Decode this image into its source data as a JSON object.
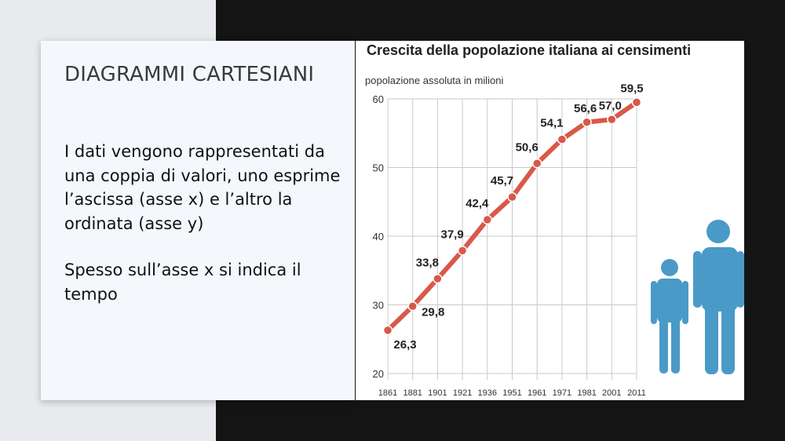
{
  "slide": {
    "title": "DIAGRAMMI CARTESIANI",
    "paragraph1": "I dati vengono rappresentati da una coppia di valori, uno esprime l’ascissa (asse x) e l’altro la ordinata (asse y)",
    "paragraph2": "Spesso sull’asse x si indica il tempo"
  },
  "colors": {
    "line": "#d9584a",
    "figure": "#4a9ac8",
    "grid": "#c9c9c9"
  },
  "chart_data": {
    "type": "line",
    "title": "Crescita della popolazione italiana ai censimenti",
    "ylabel": "popolazione assoluta in milioni",
    "xlabel": "",
    "categories": [
      "1861",
      "1881",
      "1901",
      "1921",
      "1936",
      "1951",
      "1961",
      "1971",
      "1981",
      "2001",
      "2011"
    ],
    "values": [
      26.3,
      29.8,
      33.8,
      37.9,
      42.4,
      45.7,
      50.6,
      54.1,
      56.6,
      57.0,
      59.5
    ],
    "value_labels": [
      "26,3",
      "29,8",
      "33,8",
      "37,9",
      "42,4",
      "45,7",
      "50,6",
      "54,1",
      "56,6",
      "57,0",
      "59,5"
    ],
    "ylim": [
      20,
      60
    ],
    "yticks": [
      20,
      30,
      40,
      50,
      60
    ],
    "grid": true
  }
}
